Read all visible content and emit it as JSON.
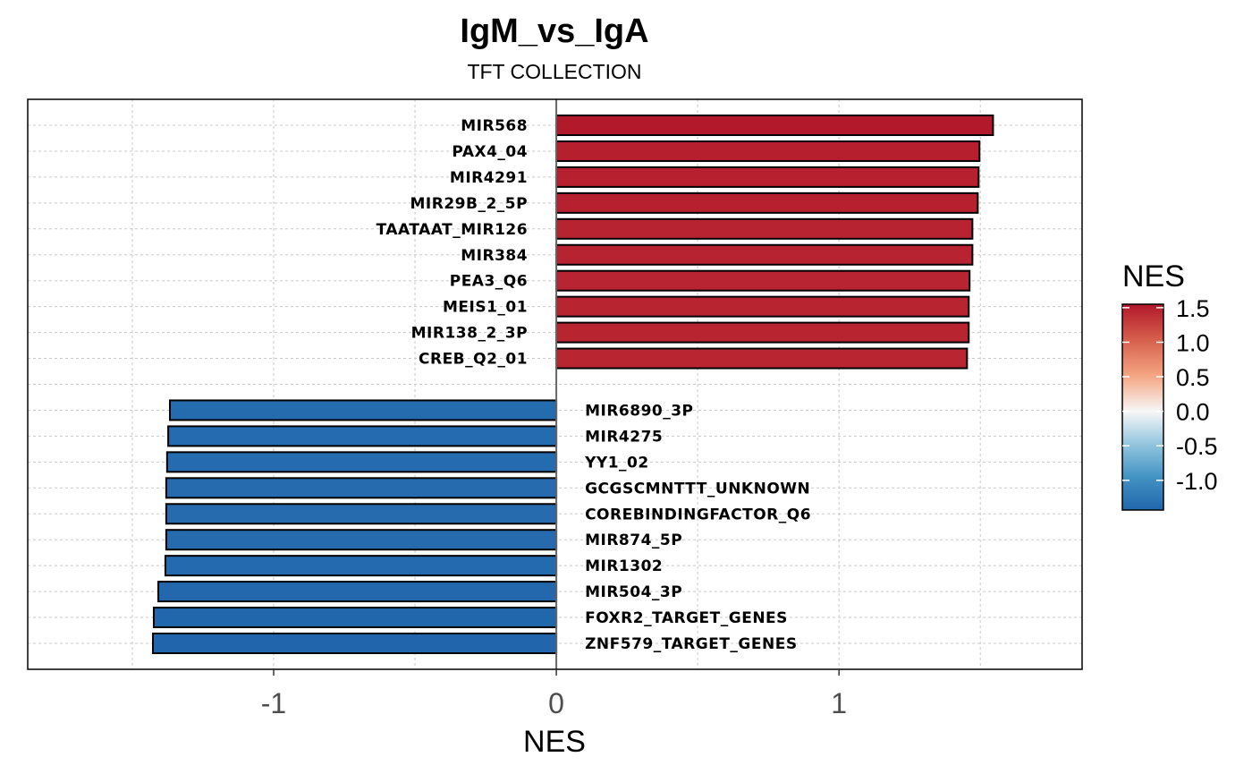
{
  "chart_data": {
    "type": "bar",
    "orientation": "horizontal",
    "title": "IgM_vs_IgA",
    "subtitle": "TFT COLLECTION",
    "xlabel": "NES",
    "ylabel": "",
    "xlim": [
      -1.87,
      1.86
    ],
    "xticks": [
      -1,
      0,
      1
    ],
    "xtick_labels": [
      "-1",
      "0",
      "1"
    ],
    "grid": true,
    "categories": [
      "MIR568",
      "PAX4_04",
      "MIR4291",
      "MIR29B_2_5P",
      "TAATAAT_MIR126",
      "MIR384",
      "PEA3_Q6",
      "MEIS1_01",
      "MIR138_2_3P",
      "CREB_Q2_01",
      "MIR6890_3P",
      "MIR4275",
      "YY1_02",
      "GCGSCMNTTT_UNKNOWN",
      "COREBINDINGFACTOR_Q6",
      "MIR874_5P",
      "MIR1302",
      "MIR504_3P",
      "FOXR2_TARGET_GENES",
      "ZNF579_TARGET_GENES"
    ],
    "values": [
      1.545,
      1.497,
      1.494,
      1.491,
      1.472,
      1.472,
      1.462,
      1.459,
      1.459,
      1.453,
      -1.367,
      -1.373,
      -1.377,
      -1.38,
      -1.38,
      -1.38,
      -1.383,
      -1.408,
      -1.424,
      -1.427
    ],
    "group_gap_after_index": 9,
    "legend": {
      "title": "NES",
      "type": "colorbar",
      "placement": "right",
      "range": [
        -1.43,
        1.55
      ],
      "ticks": [
        1.5,
        1.0,
        0.5,
        0.0,
        -0.5,
        -1.0
      ],
      "tick_labels": [
        "1.5",
        "1.0",
        "0.5",
        "0.0",
        "-0.5",
        "-1.0"
      ],
      "palette": "RdBu",
      "stops": [
        {
          "value": -1.43,
          "color": "#2166ac"
        },
        {
          "value": -0.95,
          "color": "#4393c3"
        },
        {
          "value": -0.48,
          "color": "#92c5de"
        },
        {
          "value": 0.0,
          "color": "#f7f7f7"
        },
        {
          "value": 0.52,
          "color": "#f4a582"
        },
        {
          "value": 1.03,
          "color": "#d6604d"
        },
        {
          "value": 1.55,
          "color": "#b2182b"
        }
      ]
    },
    "colors": {
      "bar_outline": "#000000",
      "zero_line": "#666666",
      "grid": "#c8c8c8",
      "panel_border": "#000000"
    }
  }
}
